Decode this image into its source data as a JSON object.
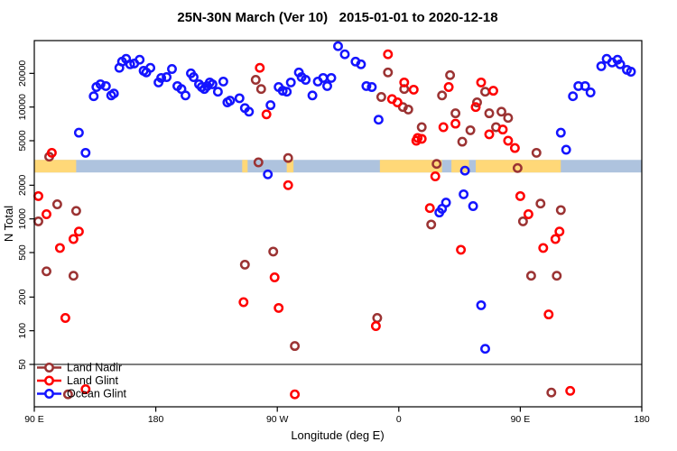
{
  "title": "25N-30N March (Ver 10)   2015-01-01 to 2020-12-18",
  "chart_data": {
    "type": "scatter",
    "title": "25N-30N March (Ver 10)   2015-01-01 to 2020-12-18",
    "xlabel": "Longitude (deg E)",
    "ylabel": "N Total",
    "x_axis": {
      "note": "longitude axis wraps; positions are degrees east of 90E, range 0-450",
      "range_deg": [
        0,
        450
      ],
      "ticks": [
        {
          "pos": 0,
          "label": "90 E"
        },
        {
          "pos": 90,
          "label": "180"
        },
        {
          "pos": 180,
          "label": "90 W"
        },
        {
          "pos": 270,
          "label": "0"
        },
        {
          "pos": 360,
          "label": "90 E"
        },
        {
          "pos": 450,
          "label": "180"
        }
      ]
    },
    "y_axis": {
      "scale": "log10",
      "range": [
        40,
        42000
      ],
      "ticks": [
        20000,
        10000,
        5000,
        2000,
        1000,
        500,
        200,
        100,
        50
      ],
      "grid": false
    },
    "threshold_line": {
      "value": 50,
      "color": "#7F7F7F"
    },
    "surface_band": {
      "description": "land(yellow)/ocean(blue) classification strip",
      "value_top": 3370,
      "value_bottom": 2600,
      "ocean_color": "#AEC3DE",
      "land_color": "#FFD878",
      "land_segments_deg": [
        [
          0,
          31
        ],
        [
          154,
          158
        ],
        [
          187,
          192
        ],
        [
          256,
          302
        ],
        [
          309,
          322
        ],
        [
          327,
          390
        ]
      ]
    },
    "legend": {
      "position": "bottom-left",
      "items": [
        "Land Nadir",
        "Land Glint",
        "Ocean Glint"
      ]
    },
    "series": [
      {
        "name": "Land Nadir",
        "color": "#9B3333",
        "points": [
          [
            11,
            3600
          ],
          [
            17,
            1350
          ],
          [
            3,
            950
          ],
          [
            31,
            1180
          ],
          [
            9,
            340
          ],
          [
            29,
            310
          ],
          [
            25,
            27
          ],
          [
            164,
            17500
          ],
          [
            168,
            14500
          ],
          [
            166,
            3200
          ],
          [
            188,
            3500
          ],
          [
            156,
            390
          ],
          [
            177,
            510
          ],
          [
            193,
            73
          ],
          [
            254,
            130
          ],
          [
            257,
            12300
          ],
          [
            262,
            20400
          ],
          [
            273,
            10000
          ],
          [
            277,
            9500
          ],
          [
            274,
            14500
          ],
          [
            287,
            6600
          ],
          [
            294,
            890
          ],
          [
            298,
            3100
          ],
          [
            302,
            12700
          ],
          [
            308,
            19300
          ],
          [
            312,
            8800
          ],
          [
            317,
            4900
          ],
          [
            323,
            6200
          ],
          [
            328,
            11000
          ],
          [
            334,
            13700
          ],
          [
            337,
            8800
          ],
          [
            342,
            6600
          ],
          [
            346,
            9100
          ],
          [
            351,
            8000
          ],
          [
            358,
            2850
          ],
          [
            362,
            950
          ],
          [
            368,
            310
          ],
          [
            372,
            3900
          ],
          [
            375,
            1370
          ],
          [
            387,
            310
          ],
          [
            390,
            1200
          ],
          [
            383,
            28
          ]
        ]
      },
      {
        "name": "Land Glint",
        "color": "#FF0000",
        "points": [
          [
            13,
            3900
          ],
          [
            3,
            1600
          ],
          [
            9,
            1100
          ],
          [
            19,
            550
          ],
          [
            29,
            660
          ],
          [
            33,
            770
          ],
          [
            23,
            130
          ],
          [
            38,
            30
          ],
          [
            167,
            22400
          ],
          [
            172,
            8600
          ],
          [
            188,
            2000
          ],
          [
            178,
            300
          ],
          [
            155,
            180
          ],
          [
            181,
            160
          ],
          [
            193,
            27
          ],
          [
            253,
            110
          ],
          [
            262,
            29600
          ],
          [
            265,
            11800
          ],
          [
            269,
            11000
          ],
          [
            274,
            16600
          ],
          [
            281,
            14300
          ],
          [
            284,
            5300
          ],
          [
            283,
            5000
          ],
          [
            287,
            5200
          ],
          [
            297,
            2400
          ],
          [
            293,
            1250
          ],
          [
            303,
            6600
          ],
          [
            307,
            15100
          ],
          [
            312,
            7100
          ],
          [
            316,
            530
          ],
          [
            327,
            10000
          ],
          [
            331,
            16600
          ],
          [
            340,
            14000
          ],
          [
            337,
            5700
          ],
          [
            347,
            6300
          ],
          [
            351,
            5000
          ],
          [
            356,
            4300
          ],
          [
            360,
            1600
          ],
          [
            366,
            1100
          ],
          [
            377,
            550
          ],
          [
            381,
            140
          ],
          [
            386,
            660
          ],
          [
            389,
            770
          ],
          [
            397,
            29
          ]
        ]
      },
      {
        "name": "Ocean Glint",
        "color": "#1414FF",
        "points": [
          [
            33,
            5900
          ],
          [
            38,
            3900
          ],
          [
            44,
            12500
          ],
          [
            46,
            15100
          ],
          [
            49,
            16000
          ],
          [
            53,
            15400
          ],
          [
            57,
            12700
          ],
          [
            59,
            13200
          ],
          [
            63,
            22400
          ],
          [
            65,
            25500
          ],
          [
            68,
            27000
          ],
          [
            71,
            24100
          ],
          [
            74,
            24500
          ],
          [
            78,
            26500
          ],
          [
            81,
            21100
          ],
          [
            83,
            20400
          ],
          [
            86,
            22400
          ],
          [
            92,
            16600
          ],
          [
            94,
            18200
          ],
          [
            98,
            18500
          ],
          [
            102,
            21900
          ],
          [
            106,
            15400
          ],
          [
            109,
            14500
          ],
          [
            112,
            12700
          ],
          [
            116,
            20000
          ],
          [
            118,
            18500
          ],
          [
            122,
            16000
          ],
          [
            124,
            15100
          ],
          [
            126,
            14500
          ],
          [
            128,
            15400
          ],
          [
            130,
            16600
          ],
          [
            132,
            16000
          ],
          [
            136,
            13700
          ],
          [
            140,
            16900
          ],
          [
            143,
            11000
          ],
          [
            145,
            11400
          ],
          [
            152,
            12000
          ],
          [
            156,
            9800
          ],
          [
            159,
            9100
          ],
          [
            175,
            10400
          ],
          [
            181,
            15100
          ],
          [
            184,
            14000
          ],
          [
            187,
            13700
          ],
          [
            190,
            16600
          ],
          [
            196,
            20400
          ],
          [
            198,
            18500
          ],
          [
            201,
            17500
          ],
          [
            206,
            12700
          ],
          [
            210,
            16900
          ],
          [
            214,
            18200
          ],
          [
            217,
            15400
          ],
          [
            220,
            18200
          ],
          [
            225,
            35000
          ],
          [
            230,
            29600
          ],
          [
            238,
            25500
          ],
          [
            242,
            24100
          ],
          [
            246,
            15400
          ],
          [
            250,
            15100
          ],
          [
            255,
            7700
          ],
          [
            173,
            2500
          ],
          [
            319,
            2700
          ],
          [
            305,
            1400
          ],
          [
            302,
            1230
          ],
          [
            300,
            1140
          ],
          [
            318,
            1660
          ],
          [
            325,
            1300
          ],
          [
            331,
            169
          ],
          [
            334,
            69
          ],
          [
            390,
            5900
          ],
          [
            394,
            4150
          ],
          [
            399,
            12500
          ],
          [
            403,
            15400
          ],
          [
            408,
            15400
          ],
          [
            412,
            13500
          ],
          [
            420,
            23200
          ],
          [
            424,
            27000
          ],
          [
            428,
            25000
          ],
          [
            432,
            26500
          ],
          [
            434,
            24100
          ],
          [
            439,
            21500
          ],
          [
            442,
            20700
          ]
        ]
      }
    ],
    "marker": {
      "shape": "open-circle",
      "radius": 4.2,
      "stroke_width": 2.5
    }
  }
}
